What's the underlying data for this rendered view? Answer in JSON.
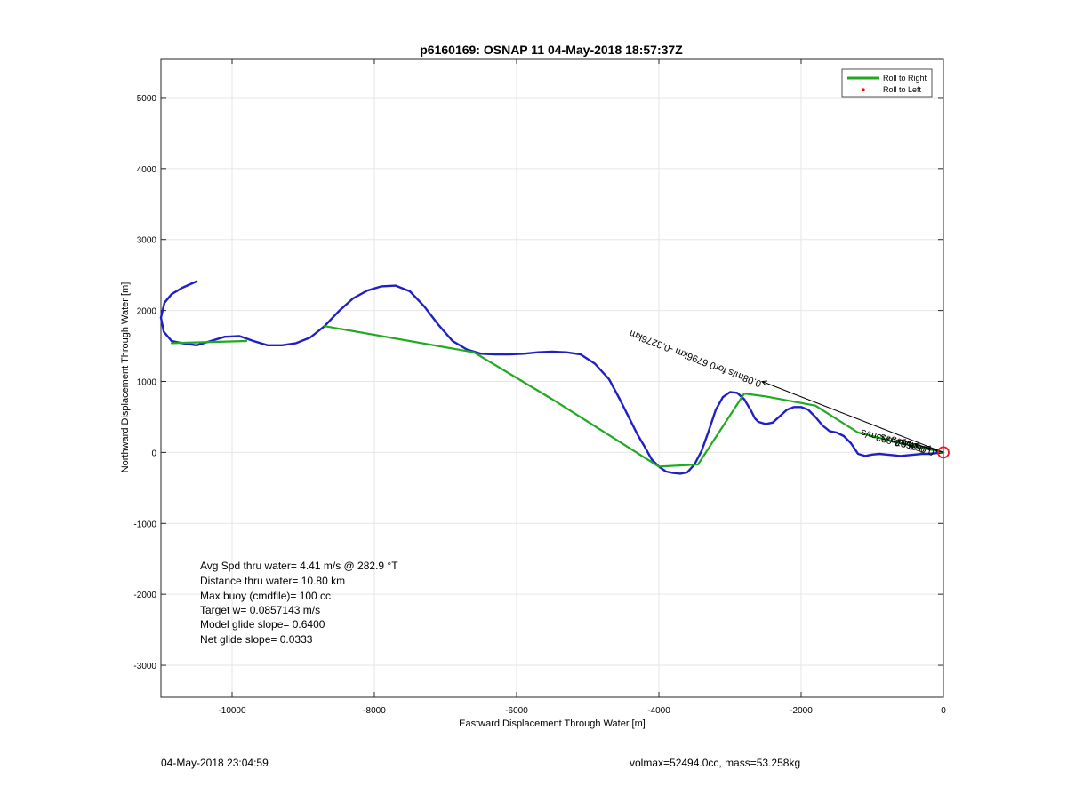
{
  "chart_data": {
    "type": "line",
    "title": "p6160169: OSNAP 11 04-May-2018 18:57:37Z",
    "xlabel": "Eastward Displacement Through Water [m]",
    "ylabel": "Northward Displacement Through Water [m]",
    "xlim": [
      -11000,
      0
    ],
    "ylim": [
      -3450,
      5550
    ],
    "xticks": [
      -10000,
      -8000,
      -6000,
      -4000,
      -2000,
      0
    ],
    "yticks": [
      -3000,
      -2000,
      -1000,
      0,
      1000,
      2000,
      3000,
      4000,
      5000
    ],
    "grid": true,
    "legend_position": "top-right",
    "legend": [
      {
        "label": "Roll to Right",
        "color": "#1faa1f",
        "marker": "line"
      },
      {
        "label": "Roll to Left",
        "color": "#ff0000",
        "marker": "dot"
      }
    ],
    "series": [
      {
        "color": "#1f1fc8",
        "x": [
          -10500,
          -10700,
          -10850,
          -10950,
          -11000,
          -10960,
          -10850,
          -10700,
          -10500,
          -10300,
          -10100,
          -9900,
          -9700,
          -9500,
          -9300,
          -9100,
          -8900,
          -8700,
          -8500,
          -8300,
          -8100,
          -7900,
          -7700,
          -7500,
          -7300,
          -7100,
          -6900,
          -6700,
          -6500,
          -6300,
          -6100,
          -5900,
          -5700,
          -5500,
          -5300,
          -5100,
          -4900,
          -4700,
          -4550,
          -4400,
          -4300,
          -4200,
          -4100,
          -4000,
          -3900,
          -3800,
          -3700,
          -3600,
          -3500,
          -3400,
          -3300,
          -3200,
          -3100,
          -3000,
          -2900,
          -2800,
          -2700,
          -2650,
          -2600,
          -2500,
          -2400,
          -2300,
          -2200,
          -2100,
          -2000,
          -1900,
          -1800,
          -1700,
          -1600,
          -1500,
          -1400,
          -1300,
          -1200,
          -1100,
          -1050,
          -1000,
          -900,
          -800,
          -700,
          -600,
          -500,
          -400,
          -300,
          -200,
          -100,
          0
        ],
        "y": [
          2410,
          2320,
          2230,
          2110,
          1900,
          1700,
          1570,
          1540,
          1510,
          1570,
          1630,
          1640,
          1570,
          1510,
          1510,
          1540,
          1620,
          1780,
          1990,
          2170,
          2280,
          2340,
          2350,
          2270,
          2060,
          1800,
          1570,
          1450,
          1390,
          1380,
          1380,
          1390,
          1410,
          1420,
          1410,
          1380,
          1250,
          1030,
          750,
          450,
          250,
          80,
          -100,
          -200,
          -270,
          -290,
          -300,
          -280,
          -170,
          20,
          300,
          600,
          780,
          850,
          840,
          750,
          580,
          480,
          430,
          400,
          420,
          510,
          600,
          640,
          640,
          600,
          500,
          380,
          300,
          280,
          230,
          130,
          -20,
          -50,
          -40,
          -30,
          -20,
          -30,
          -40,
          -50,
          -40,
          -30,
          -20,
          -20,
          -10,
          0
        ]
      },
      {
        "color": "#1faa1f",
        "x": [
          -10850,
          -9800
        ],
        "y": [
          1540,
          1570
        ]
      },
      {
        "color": "#1faa1f",
        "x": [
          -8700,
          -6600,
          -5500,
          -4000,
          -3450,
          -2800,
          -2500,
          -1800,
          -1200,
          -600,
          0
        ],
        "y": [
          1780,
          1410,
          750,
          -200,
          -170,
          830,
          790,
          660,
          280,
          130,
          0
        ]
      }
    ],
    "annotations": [
      {
        "x": -2550,
        "y": 1000,
        "text": "0.08m/s for0.6796km -0.3276km"
      },
      {
        "x": -600,
        "y": 170,
        "text": "0.083m/s"
      },
      {
        "x": -400,
        "y": 120,
        "text": "0.07m/s"
      },
      {
        "x": -250,
        "y": 80,
        "text": "0.06m/s"
      },
      {
        "x": -120,
        "y": 40,
        "text": "0.05m/s"
      }
    ],
    "arrows_origin": [
      0,
      0
    ],
    "arrow_tips": [
      [
        -2550,
        1000
      ],
      [
        -600,
        170
      ],
      [
        -400,
        120
      ],
      [
        -250,
        80
      ],
      [
        -120,
        40
      ]
    ],
    "start_marker": {
      "x": 0,
      "y": 0,
      "color": "#e41a1c"
    },
    "stats_text": [
      "Avg Spd thru water=  4.41 m/s @ 282.9 °T",
      "Distance thru water= 10.80 km",
      "Max buoy (cmdfile)= 100 cc",
      "Target w= 0.0857143 m/s",
      "Model glide slope= 0.6400",
      "Net glide slope= 0.0333"
    ]
  },
  "footer": {
    "left": "04-May-2018 23:04:59",
    "right": "volmax=52494.0cc, mass=53.258kg"
  }
}
